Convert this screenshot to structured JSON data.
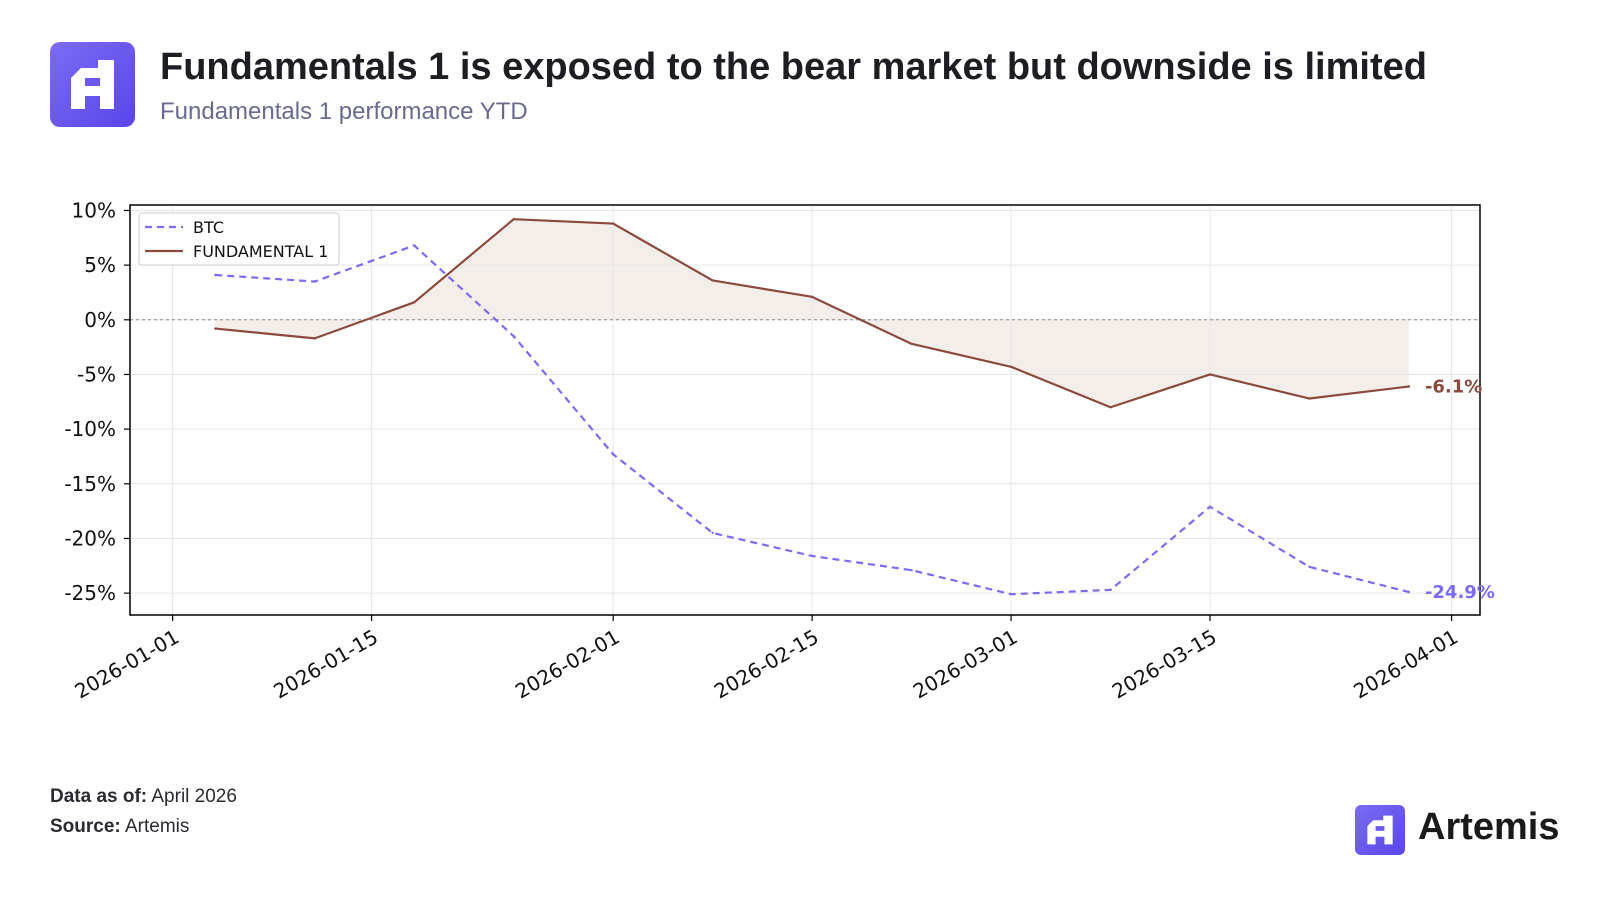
{
  "header": {
    "title": "Fundamentals 1 is exposed to the bear market but downside is limited",
    "subtitle": "Fundamentals 1 performance YTD",
    "logo_icon": "artemis-logo-icon"
  },
  "footer": {
    "data_as_of_label": "Data as of:",
    "data_as_of_value": "April 2026",
    "source_label": "Source:",
    "source_value": "Artemis",
    "brand_name": "Artemis"
  },
  "colors": {
    "accent": "#6b5cf0",
    "btc": "#7b6cf6",
    "fundamental": "#8b4a3c",
    "fill": "#ece2de"
  },
  "chart_data": {
    "type": "line",
    "title": "",
    "xlabel": "",
    "ylabel": "",
    "x_tick_labels": [
      "2026-01-01",
      "2026-01-15",
      "2026-02-01",
      "2026-02-15",
      "2026-03-01",
      "2026-03-15",
      "2026-04-01"
    ],
    "y_tick_labels": [
      "10%",
      "5%",
      "0%",
      "-5%",
      "-10%",
      "-15%",
      "-20%",
      "-25%"
    ],
    "ylim": [
      -27,
      10.5
    ],
    "xlim": [
      "2025-12-29",
      "2026-04-03"
    ],
    "grid": true,
    "legend_position": "top-left",
    "x": [
      "2026-01-04",
      "2026-01-11",
      "2026-01-18",
      "2026-01-25",
      "2026-02-01",
      "2026-02-08",
      "2026-02-15",
      "2026-02-22",
      "2026-03-01",
      "2026-03-08",
      "2026-03-15",
      "2026-03-22",
      "2026-03-29"
    ],
    "series": [
      {
        "name": "BTC",
        "style": "dashed",
        "values": [
          4.1,
          3.5,
          6.8,
          -1.5,
          -12.3,
          -19.5,
          -21.6,
          -22.9,
          -25.1,
          -24.7,
          -17.1,
          -22.6,
          -24.9
        ],
        "end_label": "-24.9%"
      },
      {
        "name": "FUNDAMENTAL 1",
        "style": "solid",
        "values": [
          -0.8,
          -1.7,
          1.6,
          9.2,
          8.8,
          3.6,
          2.1,
          -2.2,
          -4.3,
          -8.0,
          -5.0,
          -7.2,
          -6.1
        ],
        "end_label": "-6.1%"
      }
    ]
  }
}
